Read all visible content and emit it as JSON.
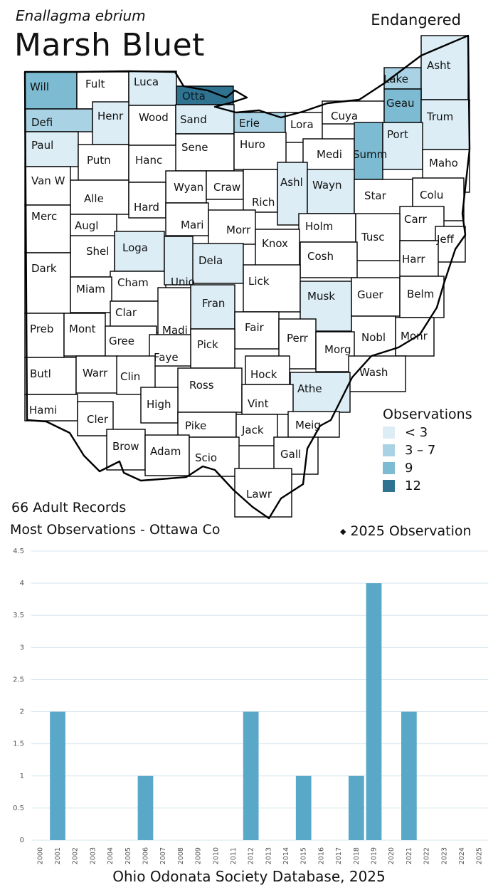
{
  "header": {
    "scientific_name": "Enallagma ebrium",
    "common_name": "Marsh Bluet",
    "status": "Endangered"
  },
  "map": {
    "counties": [
      {
        "name": "Will",
        "shade": 3
      },
      {
        "name": "Fult",
        "shade": 0
      },
      {
        "name": "Luca",
        "shade": 1
      },
      {
        "name": "Otta",
        "shade": 4
      },
      {
        "name": "Lake",
        "shade": 2
      },
      {
        "name": "Asht",
        "shade": 1
      },
      {
        "name": "Defi",
        "shade": 2
      },
      {
        "name": "Henr",
        "shade": 1
      },
      {
        "name": "Wood",
        "shade": 0
      },
      {
        "name": "Sand",
        "shade": 1
      },
      {
        "name": "Erie",
        "shade": 2
      },
      {
        "name": "Lora",
        "shade": 0
      },
      {
        "name": "Cuya",
        "shade": 0
      },
      {
        "name": "Geau",
        "shade": 3
      },
      {
        "name": "Trum",
        "shade": 1
      },
      {
        "name": "Paul",
        "shade": 1
      },
      {
        "name": "Putn",
        "shade": 0
      },
      {
        "name": "Hanc",
        "shade": 0
      },
      {
        "name": "Sene",
        "shade": 0
      },
      {
        "name": "Huro",
        "shade": 0
      },
      {
        "name": "Medi",
        "shade": 0
      },
      {
        "name": "Summ",
        "shade": 3
      },
      {
        "name": "Port",
        "shade": 1
      },
      {
        "name": "Maho",
        "shade": 0
      },
      {
        "name": "Van W",
        "shade": 0
      },
      {
        "name": "Alle",
        "shade": 0
      },
      {
        "name": "Wyan",
        "shade": 0
      },
      {
        "name": "Craw",
        "shade": 0
      },
      {
        "name": "Rich",
        "shade": 0
      },
      {
        "name": "Ashl",
        "shade": 1
      },
      {
        "name": "Wayn",
        "shade": 1
      },
      {
        "name": "Star",
        "shade": 0
      },
      {
        "name": "Colu",
        "shade": 0
      },
      {
        "name": "Hard",
        "shade": 0
      },
      {
        "name": "Merc",
        "shade": 0
      },
      {
        "name": "Augl",
        "shade": 0
      },
      {
        "name": "Mari",
        "shade": 0
      },
      {
        "name": "Morr",
        "shade": 0
      },
      {
        "name": "Holm",
        "shade": 0
      },
      {
        "name": "Carr",
        "shade": 0
      },
      {
        "name": "Knox",
        "shade": 0
      },
      {
        "name": "Tusc",
        "shade": 0
      },
      {
        "name": "Jeff",
        "shade": 0
      },
      {
        "name": "Shel",
        "shade": 0
      },
      {
        "name": "Loga",
        "shade": 1
      },
      {
        "name": "Dela",
        "shade": 1
      },
      {
        "name": "Cosh",
        "shade": 0
      },
      {
        "name": "Harr",
        "shade": 0
      },
      {
        "name": "Dark",
        "shade": 0
      },
      {
        "name": "Cham",
        "shade": 0
      },
      {
        "name": "Unio",
        "shade": 1
      },
      {
        "name": "Lick",
        "shade": 0
      },
      {
        "name": "Miam",
        "shade": 0
      },
      {
        "name": "Musk",
        "shade": 1
      },
      {
        "name": "Guer",
        "shade": 0
      },
      {
        "name": "Belm",
        "shade": 0
      },
      {
        "name": "Fran",
        "shade": 1
      },
      {
        "name": "Clar",
        "shade": 0
      },
      {
        "name": "Preb",
        "shade": 0
      },
      {
        "name": "Mont",
        "shade": 0
      },
      {
        "name": "Madi",
        "shade": 0
      },
      {
        "name": "Fair",
        "shade": 0
      },
      {
        "name": "Gree",
        "shade": 0
      },
      {
        "name": "Perr",
        "shade": 0
      },
      {
        "name": "Nobl",
        "shade": 0
      },
      {
        "name": "Monr",
        "shade": 0
      },
      {
        "name": "Pick",
        "shade": 0
      },
      {
        "name": "Morg",
        "shade": 0
      },
      {
        "name": "Faye",
        "shade": 0
      },
      {
        "name": "Butl",
        "shade": 0
      },
      {
        "name": "Warr",
        "shade": 0
      },
      {
        "name": "Clin",
        "shade": 0
      },
      {
        "name": "Wash",
        "shade": 0
      },
      {
        "name": "Hock",
        "shade": 0
      },
      {
        "name": "Ross",
        "shade": 0
      },
      {
        "name": "Athe",
        "shade": 1
      },
      {
        "name": "High",
        "shade": 0
      },
      {
        "name": "Vint",
        "shade": 0
      },
      {
        "name": "Hami",
        "shade": 0
      },
      {
        "name": "Cler",
        "shade": 0
      },
      {
        "name": "Pike",
        "shade": 0
      },
      {
        "name": "Jack",
        "shade": 0
      },
      {
        "name": "Meig",
        "shade": 0
      },
      {
        "name": "Brow",
        "shade": 0
      },
      {
        "name": "Adam",
        "shade": 0
      },
      {
        "name": "Scio",
        "shade": 0
      },
      {
        "name": "Gall",
        "shade": 0
      },
      {
        "name": "Lawr",
        "shade": 0
      }
    ]
  },
  "legend": {
    "title": "Observations",
    "items": [
      {
        "label": "< 3",
        "color": "#dcedf6"
      },
      {
        "label": "3 – 7",
        "color": "#a9d3e5"
      },
      {
        "label": "9",
        "color": "#7dbbd3"
      },
      {
        "label": "12",
        "color": "#2f7391"
      }
    ]
  },
  "summary": {
    "records": "66 Adult Records",
    "most": "Most Observations - Ottawa Co",
    "current_year": "2025  Observation",
    "current_marker": "◆"
  },
  "source": "Ohio Odonata Society Database, 2025",
  "colors": {
    "bar": "#5aa8c7",
    "grid": "#d7e6ee",
    "outline": "#000000"
  },
  "chart_data": {
    "type": "bar",
    "categories": [
      "2000",
      "2001",
      "2002",
      "2003",
      "2004",
      "2005",
      "2006",
      "2007",
      "2008",
      "2009",
      "2010",
      "2011",
      "2012",
      "2013",
      "2014",
      "2015",
      "2016",
      "2017",
      "2018",
      "2019",
      "2020",
      "2021",
      "2022",
      "2023",
      "2024",
      "2025"
    ],
    "values": [
      0,
      2,
      0,
      0,
      0,
      0,
      1,
      0,
      0,
      0,
      0,
      0,
      2,
      0,
      0,
      1,
      0,
      0,
      1,
      4,
      0,
      2,
      0,
      0,
      0,
      0
    ],
    "yticks": [
      "0",
      "0.5",
      "1",
      "1.5",
      "2",
      "2.5",
      "3",
      "3.5",
      "4",
      "4.5"
    ],
    "ylim": [
      0,
      4.5
    ],
    "grid": true
  }
}
